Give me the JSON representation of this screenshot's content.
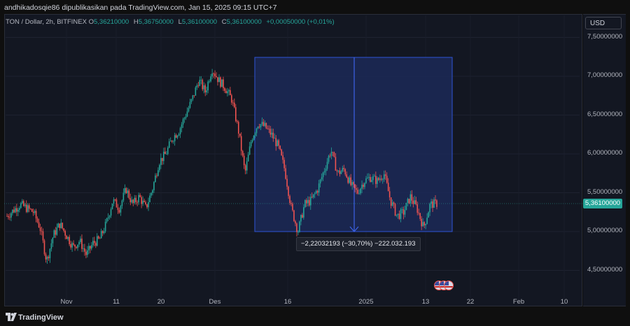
{
  "header": {
    "publisher_line": "andhikadosqie86 dipublikasikan pada TradingView.com, Jan 15, 2025 09:15 UTC+7"
  },
  "legend": {
    "symbol": "TON / Dollar, 2h, BITFINEX",
    "open_label": "O",
    "open": "5,36210000",
    "high_label": "H",
    "high": "5,36750000",
    "low_label": "L",
    "low": "5,36100000",
    "close_label": "C",
    "close": "5,36100000",
    "change": "+0,00050000 (+0,01%)"
  },
  "price_axis": {
    "currency": "USD",
    "ticks": [
      "7,50000000",
      "7,00000000",
      "6,50000000",
      "6,00000000",
      "5,50000000",
      "5,00000000",
      "4,50000000"
    ],
    "last_price": "5,36100000"
  },
  "time_axis": {
    "ticks": [
      "Nov",
      "11",
      "20",
      "Des",
      "16",
      "2025",
      "13",
      "22",
      "Feb",
      "10"
    ]
  },
  "measure": {
    "label": "−2,22032193 (−30,70%) −222.032.193"
  },
  "footer": {
    "brand": "TradingView"
  },
  "colors": {
    "up": "#26a69a",
    "down": "#ef5350",
    "measure_fill": "#1c2a5c",
    "measure_line": "#2f54d6"
  },
  "chart_data": {
    "type": "candlestick",
    "symbol": "TON / Dollar",
    "interval": "2h",
    "exchange": "BITFINEX",
    "ylim": [
      4.3,
      7.75
    ],
    "price_ticks": [
      7.5,
      7.0,
      6.5,
      6.0,
      5.5,
      5.0,
      4.5
    ],
    "time_ticks": [
      "Nov",
      "11",
      "20",
      "Des",
      "16",
      "2025",
      "13",
      "22",
      "Feb",
      "10"
    ],
    "last_close": 5.361,
    "price_path": [
      [
        0,
        5.2
      ],
      [
        4,
        5.35
      ],
      [
        8,
        5.25
      ],
      [
        10,
        5.05
      ],
      [
        12,
        4.62
      ],
      [
        14,
        4.95
      ],
      [
        16,
        5.1
      ],
      [
        18,
        4.95
      ],
      [
        20,
        4.8
      ],
      [
        22,
        4.88
      ],
      [
        24,
        4.7
      ],
      [
        26,
        4.85
      ],
      [
        28,
        4.9
      ],
      [
        30,
        5.1
      ],
      [
        32,
        5.4
      ],
      [
        34,
        5.3
      ],
      [
        36,
        5.55
      ],
      [
        38,
        5.35
      ],
      [
        40,
        5.45
      ],
      [
        42,
        5.3
      ],
      [
        44,
        5.55
      ],
      [
        46,
        5.9
      ],
      [
        48,
        6.0
      ],
      [
        50,
        6.2
      ],
      [
        52,
        6.3
      ],
      [
        54,
        6.5
      ],
      [
        56,
        6.7
      ],
      [
        58,
        6.95
      ],
      [
        60,
        6.8
      ],
      [
        62,
        7.1
      ],
      [
        64,
        6.95
      ],
      [
        66,
        6.85
      ],
      [
        68,
        6.7
      ],
      [
        70,
        6.3
      ],
      [
        72,
        5.75
      ],
      [
        74,
        6.2
      ],
      [
        76,
        6.4
      ],
      [
        78,
        6.35
      ],
      [
        80,
        6.25
      ],
      [
        82,
        6.1
      ],
      [
        84,
        5.8
      ],
      [
        86,
        5.3
      ],
      [
        88,
        5.0
      ],
      [
        90,
        5.35
      ],
      [
        92,
        5.4
      ],
      [
        94,
        5.55
      ],
      [
        96,
        5.8
      ],
      [
        98,
        6.05
      ],
      [
        100,
        5.75
      ],
      [
        102,
        5.8
      ],
      [
        104,
        5.6
      ],
      [
        106,
        5.5
      ],
      [
        108,
        5.65
      ],
      [
        110,
        5.7
      ],
      [
        112,
        5.65
      ],
      [
        114,
        5.75
      ],
      [
        116,
        5.4
      ],
      [
        118,
        5.2
      ],
      [
        120,
        5.25
      ],
      [
        122,
        5.45
      ],
      [
        124,
        5.3
      ],
      [
        126,
        5.05
      ],
      [
        128,
        5.35
      ],
      [
        130,
        5.36
      ]
    ],
    "measure_range": {
      "from_price": 7.23,
      "to_price": 5.01,
      "change": -2.22032193,
      "change_pct": -30.7
    }
  }
}
